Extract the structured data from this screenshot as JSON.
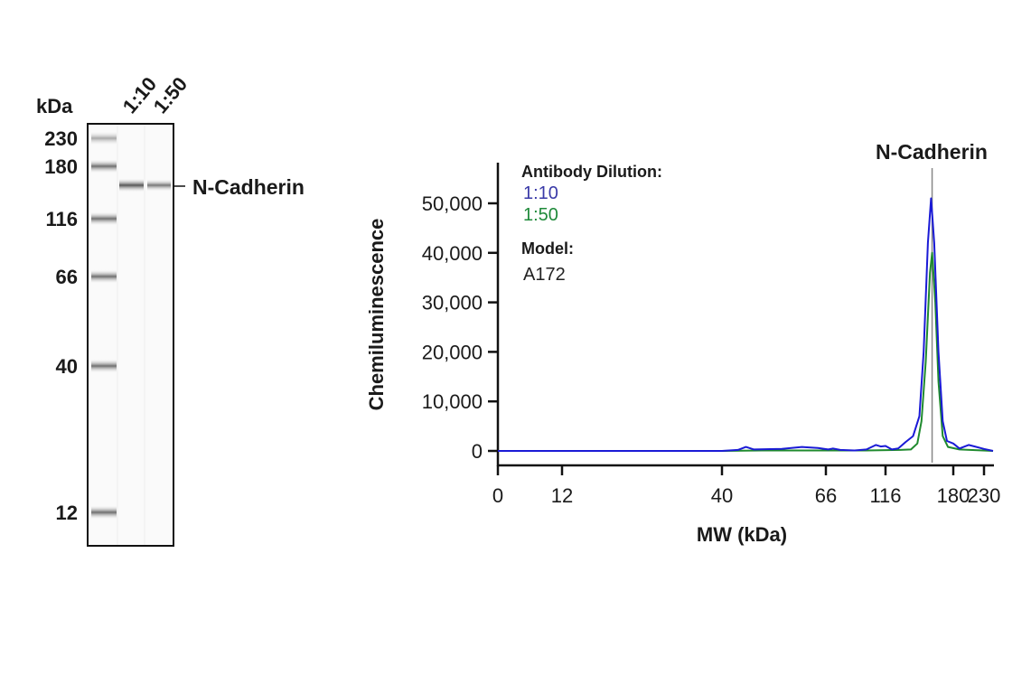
{
  "blot": {
    "unit_label": "kDa",
    "lanes": [
      "1:10",
      "1:50"
    ],
    "markers": [
      "230",
      "180",
      "116",
      "66",
      "40",
      "12"
    ],
    "band_label": "N-Cadherin"
  },
  "chart_data": {
    "type": "line",
    "title": "N-Cadherin",
    "xlabel": "MW (kDa)",
    "ylabel": "Chemiluminescence",
    "x_ticks": [
      "0",
      "12",
      "40",
      "66",
      "116",
      "180",
      "230"
    ],
    "y_ticks": [
      "0",
      "10,000",
      "20,000",
      "30,000",
      "40,000",
      "50,000"
    ],
    "ylim": [
      0,
      57000
    ],
    "xlim": [
      0,
      245
    ],
    "x_scale": "nonlinear (MW ladder)",
    "grid": false,
    "legend_placement": "top-left",
    "legend": {
      "heading": "Antibody Dilution:",
      "model_heading": "Model:",
      "model": "A172"
    },
    "reference_line_x": 160,
    "series": [
      {
        "name": "1:10",
        "color": "#1a1ad6",
        "points": [
          [
            0,
            0
          ],
          [
            12,
            0
          ],
          [
            30,
            0
          ],
          [
            40,
            0
          ],
          [
            44,
            200
          ],
          [
            46,
            800
          ],
          [
            48,
            300
          ],
          [
            55,
            400
          ],
          [
            60,
            800
          ],
          [
            64,
            600
          ],
          [
            68,
            300
          ],
          [
            72,
            500
          ],
          [
            78,
            200
          ],
          [
            90,
            100
          ],
          [
            100,
            300
          ],
          [
            108,
            1200
          ],
          [
            112,
            900
          ],
          [
            116,
            1000
          ],
          [
            122,
            300
          ],
          [
            128,
            500
          ],
          [
            135,
            1800
          ],
          [
            142,
            3000
          ],
          [
            148,
            7000
          ],
          [
            152,
            20000
          ],
          [
            156,
            42000
          ],
          [
            159,
            51000
          ],
          [
            162,
            42000
          ],
          [
            166,
            20000
          ],
          [
            170,
            6000
          ],
          [
            174,
            2000
          ],
          [
            180,
            1500
          ],
          [
            190,
            500
          ],
          [
            205,
            1200
          ],
          [
            215,
            900
          ],
          [
            230,
            400
          ],
          [
            245,
            0
          ]
        ]
      },
      {
        "name": "1:50",
        "color": "#1f8a2e",
        "points": [
          [
            0,
            0
          ],
          [
            40,
            0
          ],
          [
            50,
            100
          ],
          [
            100,
            100
          ],
          [
            130,
            200
          ],
          [
            140,
            300
          ],
          [
            146,
            1500
          ],
          [
            150,
            6000
          ],
          [
            154,
            18000
          ],
          [
            158,
            36000
          ],
          [
            160,
            40000
          ],
          [
            163,
            30000
          ],
          [
            166,
            14000
          ],
          [
            170,
            3000
          ],
          [
            175,
            800
          ],
          [
            190,
            300
          ],
          [
            245,
            0
          ]
        ]
      }
    ]
  }
}
